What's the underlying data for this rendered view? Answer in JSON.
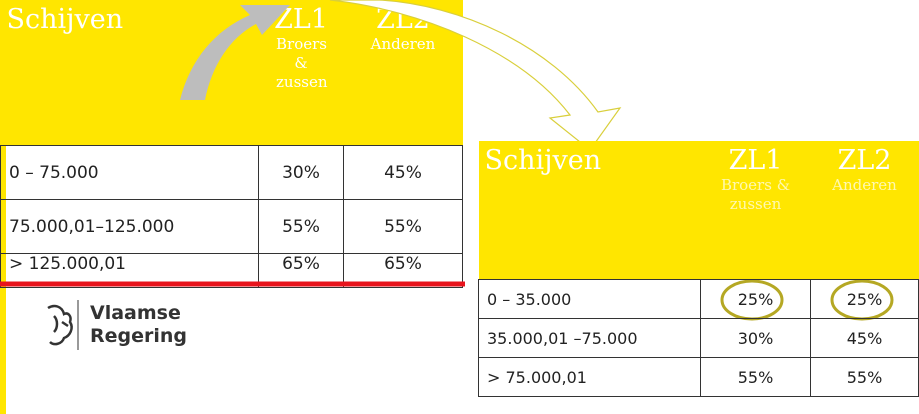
{
  "left_table": {
    "headers": [
      "Schijven",
      "ZL1",
      "Broers & zussen",
      "ZL2",
      "Anderen"
    ],
    "rows": [
      [
        "0 – 75.000",
        "30%",
        "45%"
      ],
      [
        "75.000,01–125.000",
        "55%",
        "55%"
      ],
      [
        "> 125.000,01",
        "65%",
        "65%"
      ]
    ]
  },
  "right_table": {
    "headers": [
      "Schijven",
      "ZL1",
      "Broers & zussen",
      "ZL2",
      "Anderen"
    ],
    "rows": [
      [
        "0 – 35.000",
        "25%",
        "25%"
      ],
      [
        "35.000,01 –75.000",
        "30%",
        "45%"
      ],
      [
        "> 75.000,01",
        "55%",
        "55%"
      ]
    ]
  },
  "logo": {
    "line1": "Vlaamse",
    "line2": "Regering"
  }
}
